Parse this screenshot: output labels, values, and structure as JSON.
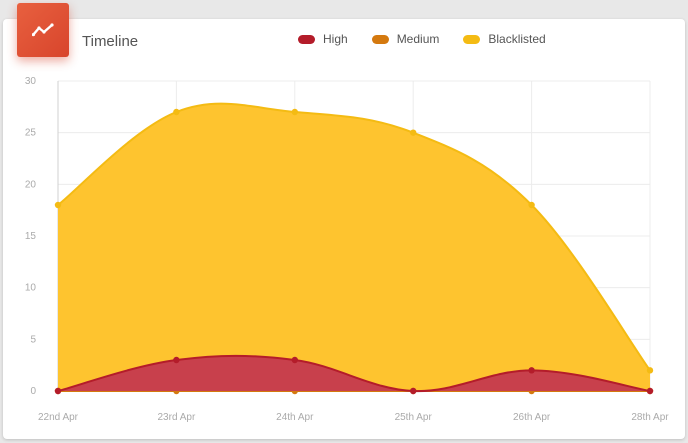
{
  "widget": {
    "title": "Timeline",
    "icon": "trending-line-icon",
    "accent_color": "#dd5135"
  },
  "chart_data": {
    "type": "area",
    "categories": [
      "22nd Apr",
      "23rd Apr",
      "24th Apr",
      "25th Apr",
      "26th Apr",
      "28th Apr"
    ],
    "series": [
      {
        "name": "High",
        "values": [
          0,
          3,
          3,
          0,
          2,
          0
        ],
        "color": "#b41c2a",
        "fill": "#c8404c"
      },
      {
        "name": "Medium",
        "values": [
          0,
          0,
          0,
          0,
          0,
          0
        ],
        "color": "#d4790f",
        "fill": "#d4790f"
      },
      {
        "name": "Blacklisted",
        "values": [
          18,
          27,
          27,
          25,
          18,
          2
        ],
        "color": "#f4bb13",
        "fill": "#fec42f"
      }
    ],
    "ylim": [
      0,
      30
    ],
    "yticks": [
      0,
      5,
      10,
      15,
      20,
      25,
      30
    ],
    "grid": true,
    "legend_position": "top"
  }
}
